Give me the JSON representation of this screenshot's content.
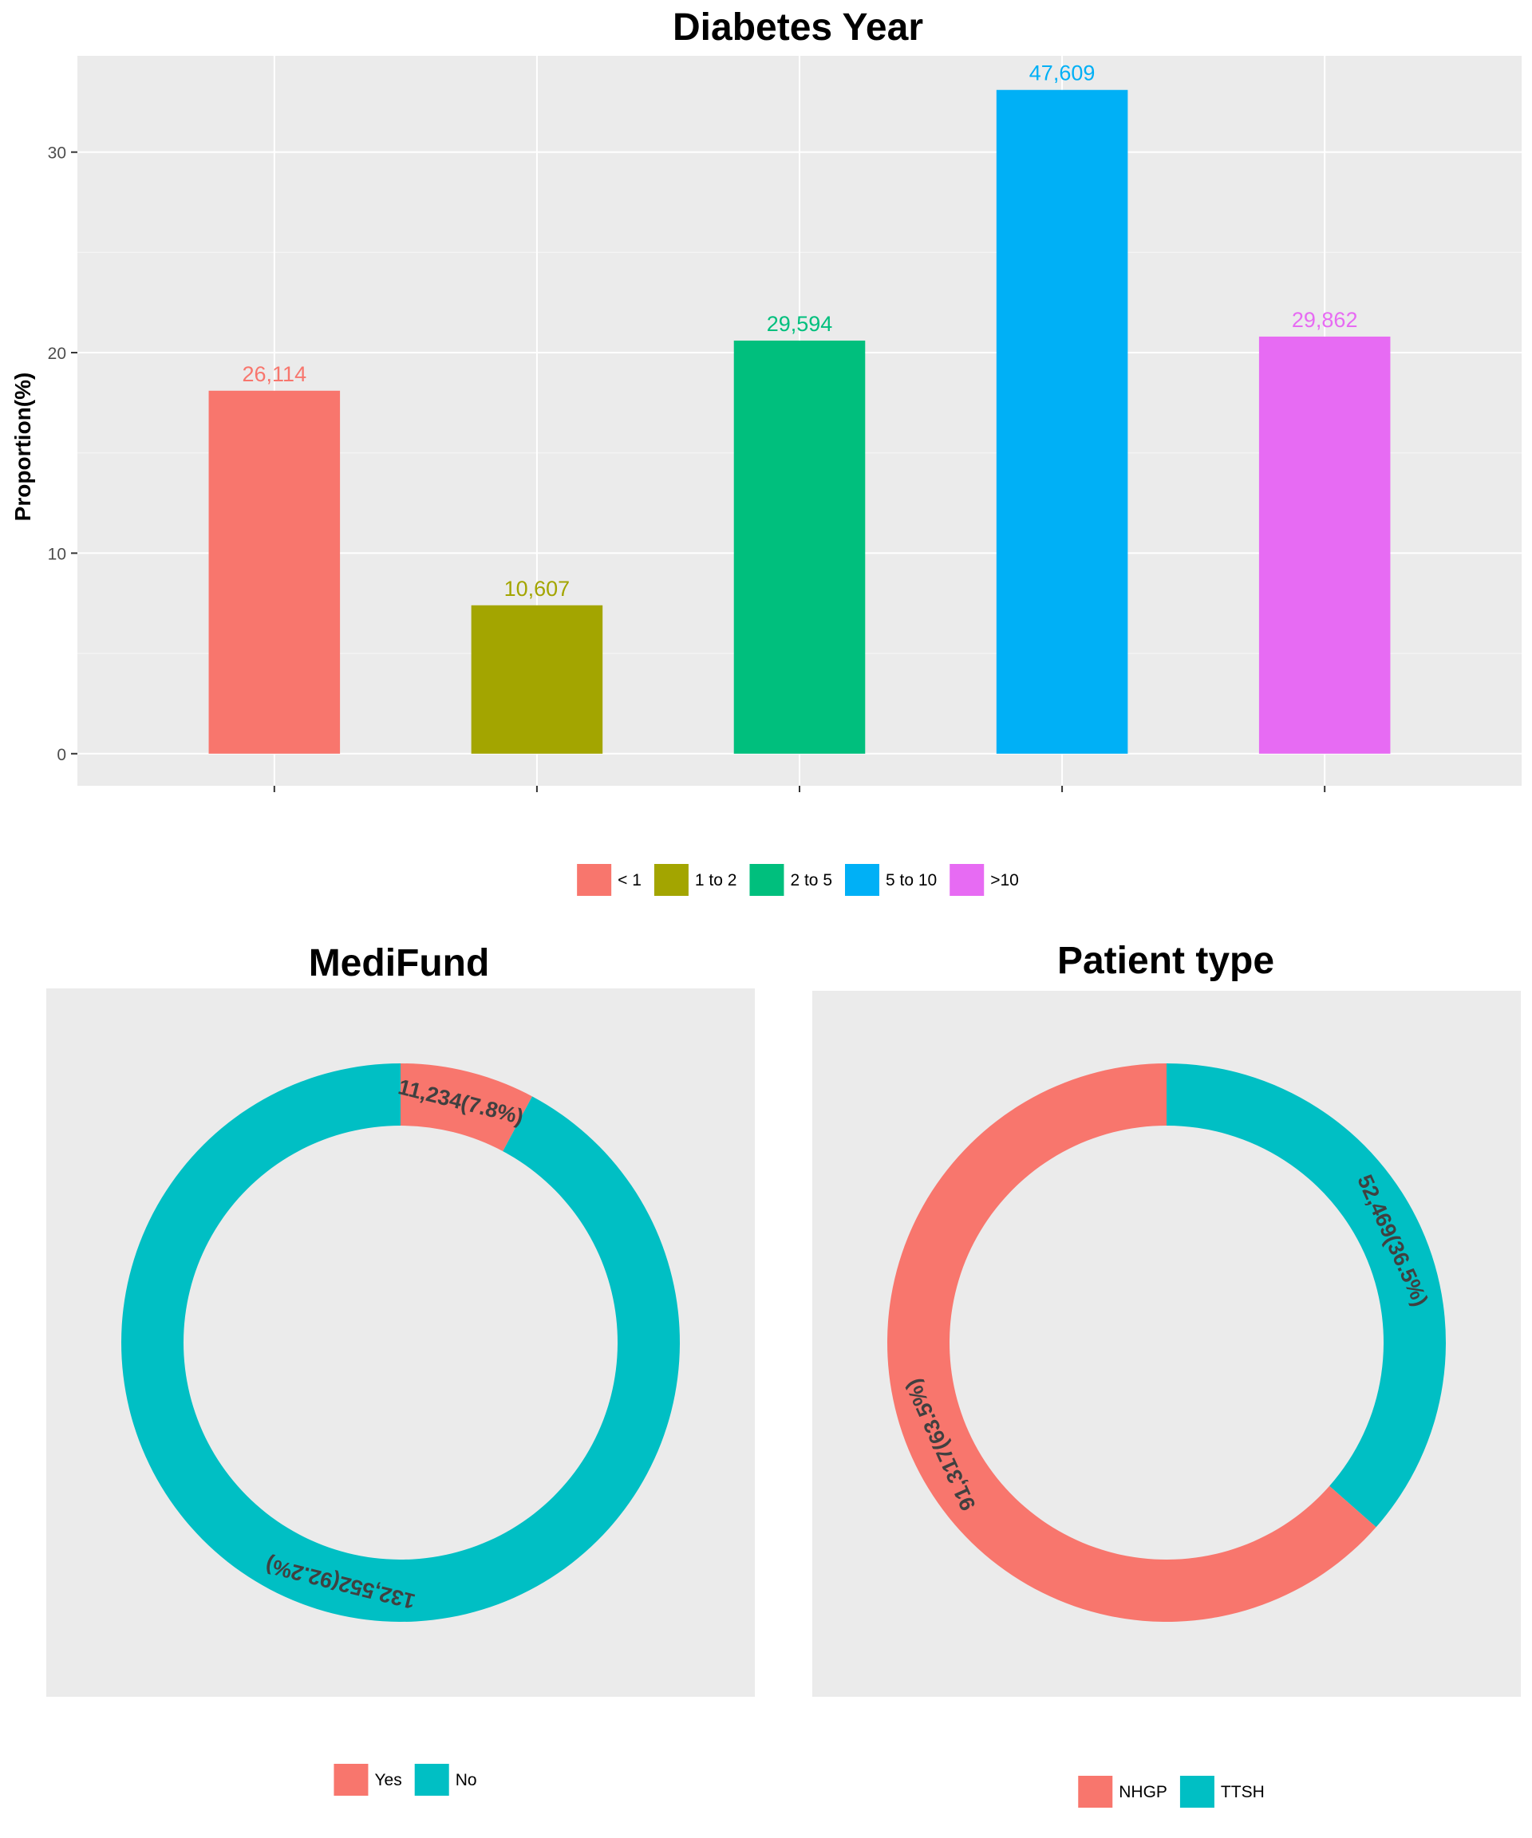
{
  "chart_data": [
    {
      "type": "bar",
      "title": "Diabetes Year",
      "xlabel": "",
      "ylabel": "Proportion(%)",
      "ylim": [
        -1.6,
        34.8
      ],
      "yticks": [
        0,
        10,
        20,
        30
      ],
      "grid": true,
      "legend_position": "bottom",
      "categories": [
        "< 1",
        "1 to 2",
        "2 to 5",
        "5 to 10",
        ">10"
      ],
      "values": [
        18.1,
        7.4,
        20.6,
        33.1,
        20.8
      ],
      "data_labels": [
        "26,114",
        "10,607",
        "29,594",
        "47,609",
        "29,862"
      ],
      "colors": [
        "#F8766D",
        "#A3A500",
        "#00BF7D",
        "#00B0F6",
        "#E76BF3"
      ]
    },
    {
      "type": "pie",
      "title": "MediFund",
      "legend_position": "bottom",
      "categories": [
        "Yes",
        "No"
      ],
      "values": [
        11234,
        132552
      ],
      "percent": [
        7.8,
        92.2
      ],
      "data_labels": [
        "11,234(7.8%)",
        "132,552(92.2%)"
      ],
      "colors": [
        "#F8766D",
        "#00BFC4"
      ]
    },
    {
      "type": "pie",
      "title": "Patient type",
      "legend_position": "bottom",
      "categories": [
        "NHGP",
        "TTSH"
      ],
      "values": [
        91317,
        52469
      ],
      "percent": [
        63.5,
        36.5
      ],
      "data_labels": [
        "91,317(63.5%)",
        "52,469(36.5%)"
      ],
      "colors": [
        "#F8766D",
        "#00BFC4"
      ],
      "order": [
        "TTSH",
        "NHGP"
      ]
    }
  ]
}
